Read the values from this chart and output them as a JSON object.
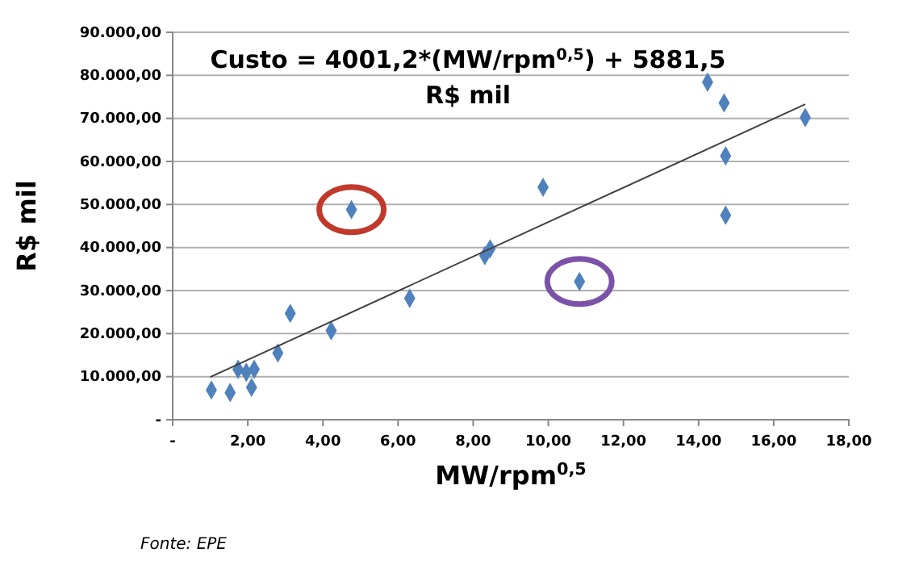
{
  "chart_data": {
    "type": "scatter",
    "xlabel": "MW/rpm$^{0,5}$",
    "ylabel": "R$ mil",
    "annotations": [
      "Custo = 4001,2*(MW/rpm$^{0,5}$) + 5881,5",
      "R$ mil",
      "Fonte: EPE"
    ],
    "series": [
      {
        "color": "#4f81bd",
        "marker": "diamond",
        "x": [
          1.03,
          1.53,
          1.74,
          1.96,
          2.17,
          2.1,
          2.8,
          3.13,
          4.22,
          4.76,
          6.31,
          8.31,
          8.45,
          9.86,
          10.83,
          14.24,
          14.68,
          14.72,
          14.72,
          16.84
        ],
        "values": [
          6900,
          6300,
          11700,
          11000,
          11700,
          7500,
          15500,
          24700,
          20700,
          48800,
          28200,
          38100,
          39700,
          54000,
          32100,
          78400,
          73600,
          61300,
          47500,
          70200
        ]
      },
      {
        "type": "line",
        "color": "#404040",
        "x": [
          1.0,
          16.84
        ],
        "values": [
          9900,
          73300
        ]
      }
    ],
    "xlim": [
      0,
      18
    ],
    "xticks": [
      {
        "value": 0,
        "label": "-"
      },
      {
        "value": 2,
        "label": "2,00"
      },
      {
        "value": 4,
        "label": "4,00"
      },
      {
        "value": 6,
        "label": "6,00"
      },
      {
        "value": 8,
        "label": "8,00"
      },
      {
        "value": 10,
        "label": "10,00"
      },
      {
        "value": 12,
        "label": "12,00"
      },
      {
        "value": 14,
        "label": "14,00"
      },
      {
        "value": 16,
        "label": "16,00"
      },
      {
        "value": 18,
        "label": "18,00"
      }
    ],
    "ylim": [
      0,
      90000
    ],
    "yticks": [
      {
        "value": 0,
        "label": "-"
      },
      {
        "value": 10000,
        "label": "10.000,00"
      },
      {
        "value": 20000,
        "label": "20.000,00"
      },
      {
        "value": 30000,
        "label": "30.000,00"
      },
      {
        "value": 40000,
        "label": "40.000,00"
      },
      {
        "value": 50000,
        "label": "50.000,00"
      },
      {
        "value": 60000,
        "label": "60.000,00"
      },
      {
        "value": 70000,
        "label": "70.000,00"
      },
      {
        "value": 80000,
        "label": "80.000,00"
      },
      {
        "value": 90000,
        "label": "90.000,00"
      }
    ],
    "grid": "y"
  }
}
